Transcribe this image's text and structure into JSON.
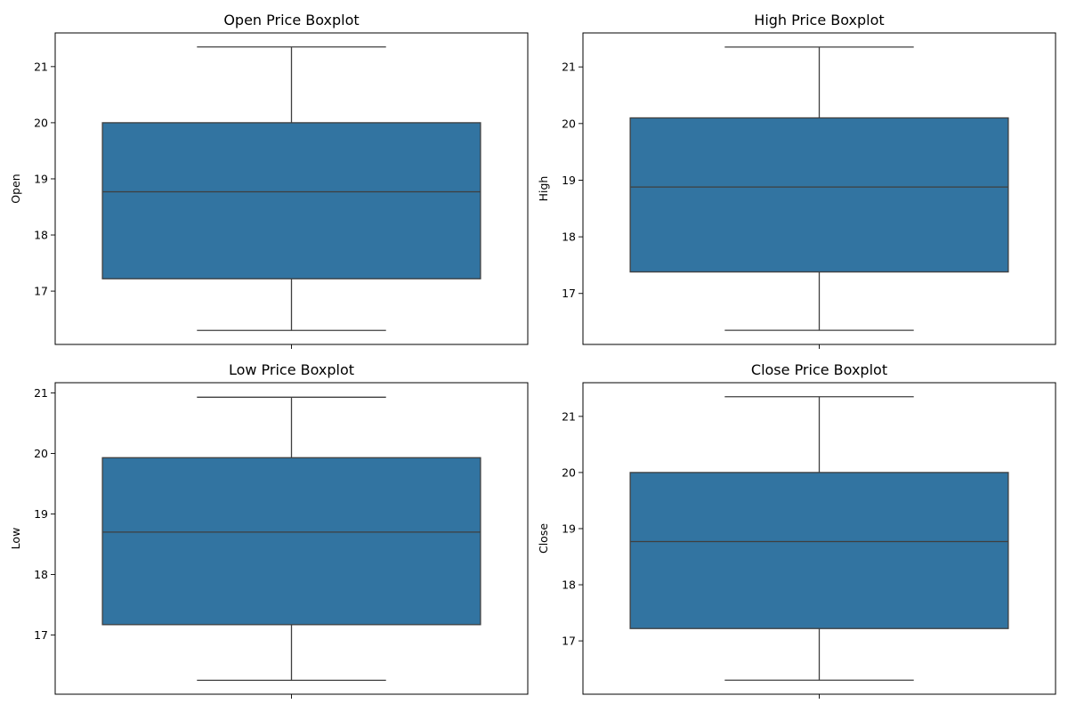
{
  "chart_data": [
    {
      "type": "box",
      "title": "Open Price Boxplot",
      "ylabel": "Open",
      "ylim": [
        16.05,
        21.6
      ],
      "yticks": [
        17,
        18,
        19,
        20,
        21
      ],
      "box": {
        "whisker_low": 16.3,
        "q1": 17.22,
        "median": 18.77,
        "q3": 20.0,
        "whisker_high": 21.35
      },
      "color": "#3274a1"
    },
    {
      "type": "box",
      "title": "High Price Boxplot",
      "ylabel": "High",
      "ylim": [
        16.1,
        21.6
      ],
      "yticks": [
        17,
        18,
        19,
        20,
        21
      ],
      "box": {
        "whisker_low": 16.35,
        "q1": 17.38,
        "median": 18.88,
        "q3": 20.1,
        "whisker_high": 21.35
      },
      "color": "#3274a1"
    },
    {
      "type": "box",
      "title": "Low Price Boxplot",
      "ylabel": "Low",
      "ylim": [
        16.02,
        21.17
      ],
      "yticks": [
        17,
        18,
        19,
        20,
        21
      ],
      "box": {
        "whisker_low": 16.25,
        "q1": 17.17,
        "median": 18.7,
        "q3": 19.93,
        "whisker_high": 20.93
      },
      "color": "#3274a1"
    },
    {
      "type": "box",
      "title": "Close Price Boxplot",
      "ylabel": "Close",
      "ylim": [
        16.05,
        21.6
      ],
      "yticks": [
        17,
        18,
        19,
        20,
        21
      ],
      "box": {
        "whisker_low": 16.3,
        "q1": 17.22,
        "median": 18.77,
        "q3": 20.0,
        "whisker_high": 21.35
      },
      "color": "#3274a1"
    }
  ]
}
